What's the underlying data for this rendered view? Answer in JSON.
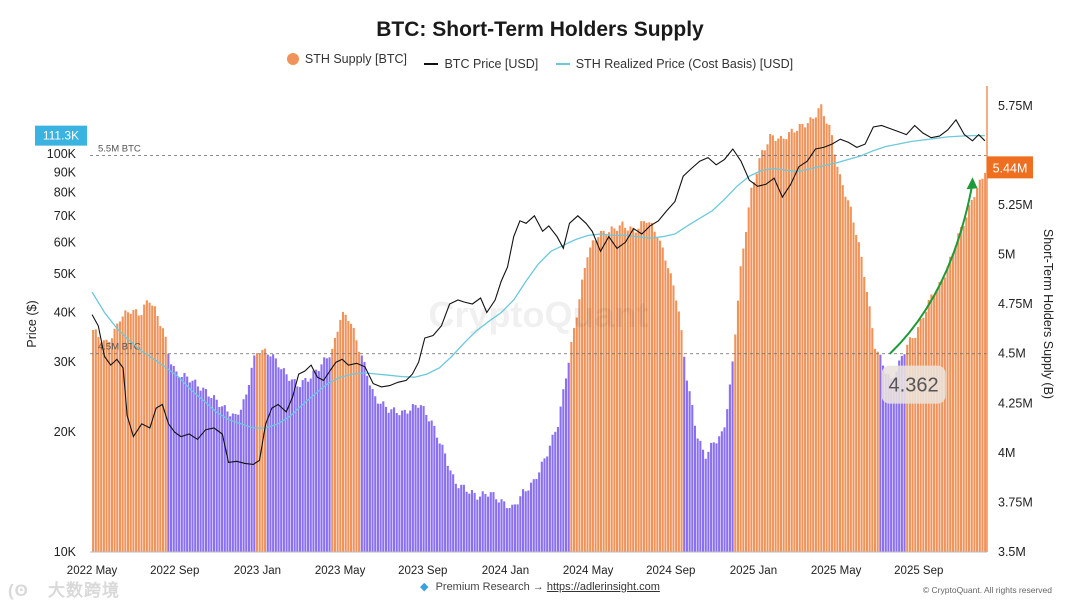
{
  "chart_data": {
    "type": "bar",
    "title": "BTC: Short-Term Holders Supply",
    "legend": [
      {
        "label": "STH Supply [BTC]",
        "color": "#f0935a"
      },
      {
        "label": "BTC Price [USD]",
        "color": "#111111"
      },
      {
        "label": "STH Realized Price (Cost Basis) [USD]",
        "color": "#6cc8dc"
      }
    ],
    "xlabel": "",
    "ylabel_left": "Price ($)",
    "ylabel_right": "Short-Term Holders Supply (B)",
    "y_left_scale": "log",
    "ylim_left": [
      10000,
      140000
    ],
    "y_left_ticks": [
      10000,
      20000,
      30000,
      40000,
      50000,
      60000,
      70000,
      80000,
      90000,
      100000
    ],
    "y_left_tick_labels": [
      "10K",
      "20K",
      "30K",
      "40K",
      "50K",
      "60K",
      "70K",
      "80K",
      "90K",
      "100K"
    ],
    "ylim_right": [
      3.5,
      5.8
    ],
    "y_right_ticks": [
      3.5,
      3.75,
      4.0,
      4.25,
      4.5,
      4.75,
      5.0,
      5.25,
      5.5,
      5.75
    ],
    "y_right_tick_labels": [
      "3.5M",
      "3.75M",
      "4M",
      "4.25M",
      "4.5M",
      "4.75M",
      "5M",
      "5.25M",
      "",
      "5.75M"
    ],
    "x_tick_labels": [
      "2022 May",
      "2022 Sep",
      "2023 Jan",
      "2023 May",
      "2023 Sep",
      "2024 Jan",
      "2024 May",
      "2024 Sep",
      "2025 Jan",
      "2025 May",
      "2025 Sep"
    ],
    "x_tick_months": [
      0,
      4,
      8,
      12,
      16,
      20,
      24,
      28,
      32,
      36,
      40
    ],
    "x_range_months": [
      -0.1,
      43.3
    ],
    "x_units": "months since 2022 May",
    "bar_colors": {
      "above": "#f0935a",
      "below": "#8a6ff0"
    },
    "reference_lines": [
      {
        "label": "5.5M BTC",
        "value": 5.5
      },
      {
        "label": "4.5M BTC",
        "value": 4.5
      }
    ],
    "price_badge": "111.3K",
    "supply_badge": "5.44M",
    "annotation_value": "4.362",
    "watermark": "CryptoQuant",
    "supply_points": [
      [
        0.0,
        4.62
      ],
      [
        0.6,
        4.55
      ],
      [
        1.0,
        4.6
      ],
      [
        1.3,
        4.68
      ],
      [
        1.8,
        4.72
      ],
      [
        2.3,
        4.7
      ],
      [
        2.7,
        4.78
      ],
      [
        3.0,
        4.72
      ],
      [
        3.4,
        4.62
      ],
      [
        3.7,
        4.48
      ],
      [
        4.0,
        4.4
      ],
      [
        4.6,
        4.38
      ],
      [
        5.2,
        4.33
      ],
      [
        5.8,
        4.28
      ],
      [
        6.4,
        4.22
      ],
      [
        6.9,
        4.18
      ],
      [
        7.4,
        4.28
      ],
      [
        7.7,
        4.45
      ],
      [
        8.0,
        4.52
      ],
      [
        8.6,
        4.5
      ],
      [
        9.3,
        4.4
      ],
      [
        9.9,
        4.34
      ],
      [
        10.5,
        4.38
      ],
      [
        11.0,
        4.44
      ],
      [
        11.6,
        4.52
      ],
      [
        12.0,
        4.7
      ],
      [
        12.4,
        4.68
      ],
      [
        12.8,
        4.55
      ],
      [
        13.2,
        4.42
      ],
      [
        13.6,
        4.28
      ],
      [
        14.3,
        4.22
      ],
      [
        15.0,
        4.2
      ],
      [
        15.8,
        4.25
      ],
      [
        16.4,
        4.15
      ],
      [
        17.0,
        4.0
      ],
      [
        17.5,
        3.85
      ],
      [
        18.0,
        3.82
      ],
      [
        18.6,
        3.78
      ],
      [
        19.2,
        3.8
      ],
      [
        19.8,
        3.75
      ],
      [
        20.3,
        3.72
      ],
      [
        20.8,
        3.8
      ],
      [
        21.3,
        3.85
      ],
      [
        21.9,
        3.98
      ],
      [
        22.5,
        4.15
      ],
      [
        22.9,
        4.4
      ],
      [
        23.4,
        4.7
      ],
      [
        23.9,
        5.0
      ],
      [
        24.4,
        5.1
      ],
      [
        25.0,
        5.12
      ],
      [
        25.6,
        5.15
      ],
      [
        26.2,
        5.12
      ],
      [
        26.8,
        5.18
      ],
      [
        27.3,
        5.1
      ],
      [
        27.8,
        4.95
      ],
      [
        28.3,
        4.75
      ],
      [
        28.7,
        4.4
      ],
      [
        29.2,
        4.1
      ],
      [
        29.6,
        3.98
      ],
      [
        30.0,
        4.05
      ],
      [
        30.5,
        4.1
      ],
      [
        30.9,
        4.4
      ],
      [
        31.3,
        4.9
      ],
      [
        31.8,
        5.3
      ],
      [
        32.3,
        5.5
      ],
      [
        32.8,
        5.6
      ],
      [
        33.3,
        5.58
      ],
      [
        33.8,
        5.62
      ],
      [
        34.3,
        5.65
      ],
      [
        34.8,
        5.68
      ],
      [
        35.2,
        5.75
      ],
      [
        35.7,
        5.62
      ],
      [
        36.1,
        5.4
      ],
      [
        36.6,
        5.25
      ],
      [
        37.0,
        5.08
      ],
      [
        37.4,
        4.85
      ],
      [
        37.8,
        4.55
      ],
      [
        38.2,
        4.45
      ],
      [
        38.6,
        4.36
      ],
      [
        39.0,
        4.45
      ],
      [
        39.4,
        4.55
      ],
      [
        39.8,
        4.6
      ],
      [
        40.2,
        4.7
      ],
      [
        40.6,
        4.8
      ],
      [
        41.0,
        4.85
      ],
      [
        41.4,
        4.95
      ],
      [
        41.8,
        5.08
      ],
      [
        42.2,
        5.18
      ],
      [
        42.6,
        5.3
      ],
      [
        43.0,
        5.38
      ],
      [
        43.2,
        5.44
      ]
    ],
    "btc_price_points": [
      [
        0.0,
        39500
      ],
      [
        0.3,
        37000
      ],
      [
        0.6,
        31000
      ],
      [
        0.9,
        29500
      ],
      [
        1.2,
        30500
      ],
      [
        1.5,
        29000
      ],
      [
        1.7,
        22000
      ],
      [
        2.0,
        19500
      ],
      [
        2.4,
        21000
      ],
      [
        2.8,
        20500
      ],
      [
        3.1,
        23000
      ],
      [
        3.4,
        23500
      ],
      [
        3.7,
        21000
      ],
      [
        4.0,
        20000
      ],
      [
        4.3,
        19500
      ],
      [
        4.7,
        19800
      ],
      [
        5.1,
        19200
      ],
      [
        5.5,
        20300
      ],
      [
        5.9,
        20500
      ],
      [
        6.3,
        19800
      ],
      [
        6.6,
        16800
      ],
      [
        7.0,
        16900
      ],
      [
        7.4,
        16700
      ],
      [
        7.8,
        16600
      ],
      [
        8.1,
        17000
      ],
      [
        8.4,
        21000
      ],
      [
        8.7,
        23000
      ],
      [
        9.0,
        23500
      ],
      [
        9.4,
        22500
      ],
      [
        9.7,
        24500
      ],
      [
        10.0,
        28000
      ],
      [
        10.3,
        28500
      ],
      [
        10.6,
        29500
      ],
      [
        10.9,
        27500
      ],
      [
        11.2,
        27000
      ],
      [
        11.5,
        28500
      ],
      [
        11.8,
        30000
      ],
      [
        12.1,
        30500
      ],
      [
        12.4,
        29500
      ],
      [
        12.8,
        29800
      ],
      [
        13.2,
        29200
      ],
      [
        13.6,
        26500
      ],
      [
        14.0,
        26000
      ],
      [
        14.4,
        26200
      ],
      [
        14.8,
        26700
      ],
      [
        15.2,
        27000
      ],
      [
        15.5,
        28000
      ],
      [
        15.8,
        30000
      ],
      [
        16.1,
        34500
      ],
      [
        16.5,
        35000
      ],
      [
        16.9,
        37000
      ],
      [
        17.3,
        42000
      ],
      [
        17.7,
        43000
      ],
      [
        18.0,
        42500
      ],
      [
        18.4,
        42000
      ],
      [
        18.8,
        43500
      ],
      [
        19.1,
        40000
      ],
      [
        19.5,
        43000
      ],
      [
        19.8,
        48000
      ],
      [
        20.1,
        52000
      ],
      [
        20.4,
        62000
      ],
      [
        20.7,
        68000
      ],
      [
        21.0,
        67000
      ],
      [
        21.4,
        70000
      ],
      [
        21.8,
        64000
      ],
      [
        22.1,
        66000
      ],
      [
        22.5,
        62000
      ],
      [
        22.8,
        58000
      ],
      [
        23.1,
        67000
      ],
      [
        23.5,
        70000
      ],
      [
        23.9,
        67000
      ],
      [
        24.2,
        64000
      ],
      [
        24.6,
        57000
      ],
      [
        25.0,
        62000
      ],
      [
        25.4,
        58000
      ],
      [
        25.8,
        60000
      ],
      [
        26.2,
        65000
      ],
      [
        26.6,
        63000
      ],
      [
        27.0,
        66000
      ],
      [
        27.4,
        68000
      ],
      [
        27.8,
        72000
      ],
      [
        28.2,
        76000
      ],
      [
        28.6,
        88000
      ],
      [
        29.0,
        92000
      ],
      [
        29.4,
        96000
      ],
      [
        29.8,
        98000
      ],
      [
        30.2,
        94000
      ],
      [
        30.6,
        97000
      ],
      [
        31.0,
        103000
      ],
      [
        31.4,
        96000
      ],
      [
        31.8,
        86000
      ],
      [
        32.2,
        83000
      ],
      [
        32.6,
        84000
      ],
      [
        33.0,
        87000
      ],
      [
        33.4,
        78000
      ],
      [
        33.8,
        84000
      ],
      [
        34.2,
        93000
      ],
      [
        34.6,
        96000
      ],
      [
        35.0,
        103000
      ],
      [
        35.4,
        104000
      ],
      [
        35.8,
        106000
      ],
      [
        36.2,
        109000
      ],
      [
        36.6,
        107000
      ],
      [
        37.0,
        104000
      ],
      [
        37.4,
        106000
      ],
      [
        37.8,
        117000
      ],
      [
        38.2,
        118000
      ],
      [
        38.6,
        116000
      ],
      [
        39.0,
        114000
      ],
      [
        39.4,
        112000
      ],
      [
        39.8,
        118000
      ],
      [
        40.2,
        113000
      ],
      [
        40.6,
        110000
      ],
      [
        41.0,
        111000
      ],
      [
        41.4,
        115000
      ],
      [
        41.8,
        122000
      ],
      [
        42.2,
        112000
      ],
      [
        42.6,
        108000
      ],
      [
        42.9,
        112000
      ],
      [
        43.2,
        108000
      ]
    ],
    "sth_realized_price_points": [
      [
        0.0,
        45000
      ],
      [
        0.6,
        40000
      ],
      [
        1.2,
        36500
      ],
      [
        1.8,
        34000
      ],
      [
        2.4,
        32000
      ],
      [
        3.0,
        30500
      ],
      [
        3.6,
        29000
      ],
      [
        4.2,
        27500
      ],
      [
        4.8,
        25500
      ],
      [
        5.4,
        24000
      ],
      [
        6.0,
        22500
      ],
      [
        6.6,
        21500
      ],
      [
        7.2,
        21000
      ],
      [
        7.8,
        20500
      ],
      [
        8.4,
        20500
      ],
      [
        9.0,
        21000
      ],
      [
        9.6,
        22000
      ],
      [
        10.2,
        23500
      ],
      [
        10.8,
        25000
      ],
      [
        11.4,
        26500
      ],
      [
        12.0,
        27500
      ],
      [
        12.6,
        28000
      ],
      [
        13.2,
        28200
      ],
      [
        13.8,
        28000
      ],
      [
        14.4,
        27800
      ],
      [
        15.0,
        27600
      ],
      [
        15.6,
        27500
      ],
      [
        16.2,
        28000
      ],
      [
        16.8,
        29000
      ],
      [
        17.4,
        31000
      ],
      [
        18.0,
        33500
      ],
      [
        18.6,
        36000
      ],
      [
        19.2,
        38000
      ],
      [
        19.8,
        40000
      ],
      [
        20.4,
        43000
      ],
      [
        21.0,
        48000
      ],
      [
        21.6,
        53000
      ],
      [
        22.2,
        57000
      ],
      [
        22.8,
        59000
      ],
      [
        23.4,
        61000
      ],
      [
        24.0,
        62500
      ],
      [
        24.6,
        63000
      ],
      [
        25.2,
        62500
      ],
      [
        25.8,
        62500
      ],
      [
        26.4,
        62000
      ],
      [
        27.0,
        61500
      ],
      [
        27.6,
        62000
      ],
      [
        28.2,
        63000
      ],
      [
        28.8,
        66000
      ],
      [
        29.4,
        69000
      ],
      [
        30.0,
        72000
      ],
      [
        30.6,
        77000
      ],
      [
        31.2,
        83000
      ],
      [
        31.8,
        88000
      ],
      [
        32.4,
        91000
      ],
      [
        33.0,
        92000
      ],
      [
        33.6,
        91000
      ],
      [
        34.2,
        90500
      ],
      [
        34.8,
        92000
      ],
      [
        35.4,
        93500
      ],
      [
        36.0,
        95000
      ],
      [
        36.6,
        97000
      ],
      [
        37.2,
        99000
      ],
      [
        37.8,
        102000
      ],
      [
        38.4,
        104500
      ],
      [
        39.0,
        106000
      ],
      [
        39.6,
        107500
      ],
      [
        40.2,
        108500
      ],
      [
        40.8,
        109500
      ],
      [
        41.4,
        110500
      ],
      [
        42.0,
        111000
      ],
      [
        42.6,
        111300
      ],
      [
        43.2,
        111300
      ]
    ]
  },
  "footer": {
    "premium_label": "Premium Research →",
    "premium_link": "https://adlerinsight.com",
    "copyright": "© CryptoQuant. All rights reserved",
    "brand": "大数跨境"
  }
}
